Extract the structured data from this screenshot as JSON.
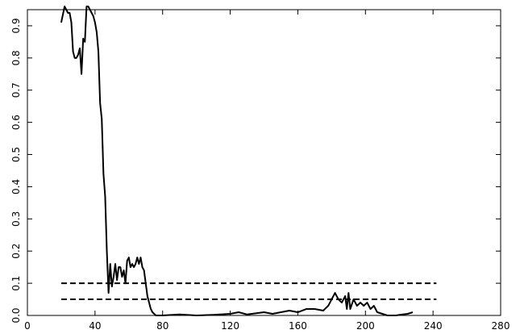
{
  "chart_data": {
    "type": "line",
    "x": [
      20,
      22,
      24,
      25,
      26,
      27,
      28,
      29,
      30,
      31,
      32,
      33,
      34,
      35,
      36,
      37,
      38,
      39,
      40,
      41,
      42,
      43,
      44,
      45,
      46,
      47,
      48,
      49,
      50,
      51,
      52,
      53,
      54,
      55,
      56,
      57,
      58,
      59,
      60,
      61,
      62,
      63,
      64,
      65,
      66,
      67,
      68,
      69,
      70,
      71,
      72,
      73,
      74,
      75,
      76,
      80,
      90,
      100,
      110,
      120,
      125,
      130,
      140,
      145,
      150,
      155,
      160,
      165,
      170,
      175,
      178,
      180,
      182,
      184,
      186,
      188,
      189,
      190,
      191,
      193,
      195,
      197,
      199,
      201,
      203,
      205,
      207,
      210,
      213,
      218,
      222,
      225,
      228
    ],
    "values": [
      0.91,
      0.96,
      0.94,
      0.94,
      0.91,
      0.82,
      0.8,
      0.8,
      0.81,
      0.83,
      0.75,
      0.86,
      0.85,
      0.96,
      0.96,
      0.95,
      0.94,
      0.93,
      0.91,
      0.88,
      0.82,
      0.66,
      0.61,
      0.44,
      0.37,
      0.2,
      0.07,
      0.16,
      0.09,
      0.12,
      0.16,
      0.11,
      0.15,
      0.15,
      0.12,
      0.14,
      0.1,
      0.17,
      0.18,
      0.15,
      0.16,
      0.15,
      0.16,
      0.18,
      0.16,
      0.18,
      0.15,
      0.14,
      0.1,
      0.06,
      0.04,
      0.02,
      0.01,
      0.005,
      0.0,
      0.0,
      0.003,
      0.0,
      0.002,
      0.005,
      0.01,
      0.003,
      0.01,
      0.005,
      0.01,
      0.015,
      0.01,
      0.02,
      0.02,
      0.015,
      0.03,
      0.05,
      0.07,
      0.05,
      0.04,
      0.06,
      0.02,
      0.07,
      0.02,
      0.05,
      0.03,
      0.04,
      0.03,
      0.04,
      0.02,
      0.03,
      0.01,
      0.005,
      0.0,
      0.0,
      0.003,
      0.005,
      0.01
    ],
    "color": "#000000",
    "hlines": [
      {
        "y": 0.1,
        "xmin": 20,
        "xmax": 242
      },
      {
        "y": 0.05,
        "xmin": 20,
        "xmax": 242
      }
    ],
    "xlim": [
      0,
      280
    ],
    "xticks": [
      0,
      40,
      80,
      120,
      160,
      200,
      240,
      280
    ],
    "ylim": [
      0,
      0.95
    ],
    "yticks": [
      {
        "value": 0,
        "label": "0.0"
      },
      0.1,
      0.2,
      0.3,
      0.4,
      0.5,
      0.6,
      0.7,
      0.8,
      0.9
    ]
  }
}
